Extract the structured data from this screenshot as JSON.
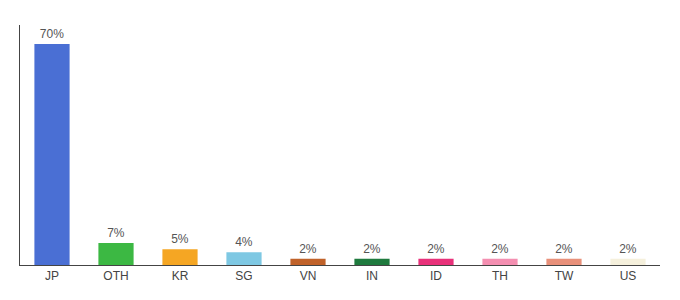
{
  "chart_data": {
    "type": "bar",
    "categories": [
      "JP",
      "OTH",
      "KR",
      "SG",
      "VN",
      "IN",
      "ID",
      "TH",
      "TW",
      "US"
    ],
    "values": [
      70,
      7,
      5,
      4,
      2,
      2,
      2,
      2,
      2,
      2
    ],
    "value_labels": [
      "70%",
      "7%",
      "5%",
      "4%",
      "2%",
      "2%",
      "2%",
      "2%",
      "2%",
      "2%"
    ],
    "colors": [
      "#4a6fd4",
      "#3cb843",
      "#f5a623",
      "#7ec8e3",
      "#c0622a",
      "#1f7a3e",
      "#e8317a",
      "#f48fb1",
      "#e8907a",
      "#f5f0dc"
    ],
    "ylim": [
      0,
      76
    ],
    "data_labels": true,
    "tick_labels": "x",
    "grid": false
  }
}
